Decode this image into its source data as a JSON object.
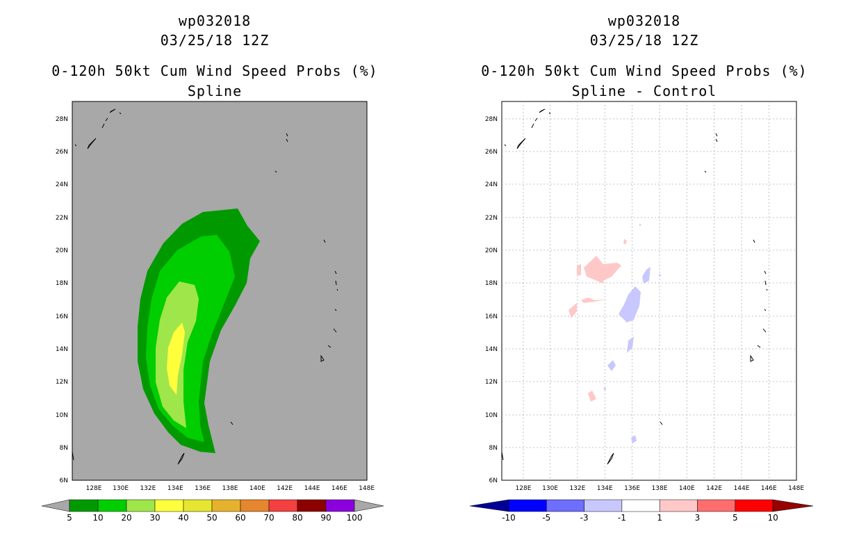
{
  "left_panel": {
    "storm": "wp032018",
    "datetime": "03/25/18 12Z",
    "product": "0-120h 50kt Cum Wind Speed Probs (%)",
    "subtitle": "Spline",
    "colorbar": {
      "labels": [
        "5",
        "10",
        "20",
        "30",
        "40",
        "50",
        "60",
        "70",
        "80",
        "90",
        "100"
      ],
      "colors": [
        "#009a00",
        "#00ce00",
        "#9fe64a",
        "#ffff3c",
        "#e6e62e",
        "#e6b22e",
        "#e6862e",
        "#f34040",
        "#8c0000",
        "#8c00de"
      ]
    }
  },
  "right_panel": {
    "storm": "wp032018",
    "datetime": "03/25/18 12Z",
    "product": "0-120h 50kt Cum Wind Speed Probs (%)",
    "subtitle": "Spline - Control",
    "colorbar": {
      "labels": [
        "-10",
        "-5",
        "-3",
        "-1",
        "1",
        "3",
        "5",
        "10"
      ],
      "colors": [
        "#000096",
        "#0000ff",
        "#6e6eff",
        "#c8c8ff",
        "#ffffff",
        "#ffc8c8",
        "#ff6e6e",
        "#ff0000",
        "#960000"
      ]
    }
  },
  "map": {
    "lon_ticks": [
      "128E",
      "130E",
      "132E",
      "134E",
      "136E",
      "138E",
      "140E",
      "142E",
      "144E",
      "146E",
      "148E"
    ],
    "lat_ticks": [
      "6N",
      "8N",
      "10N",
      "12N",
      "14N",
      "16N",
      "18N",
      "20N",
      "22N",
      "24N",
      "26N",
      "28N"
    ],
    "background_left": "#a8a8a8"
  }
}
